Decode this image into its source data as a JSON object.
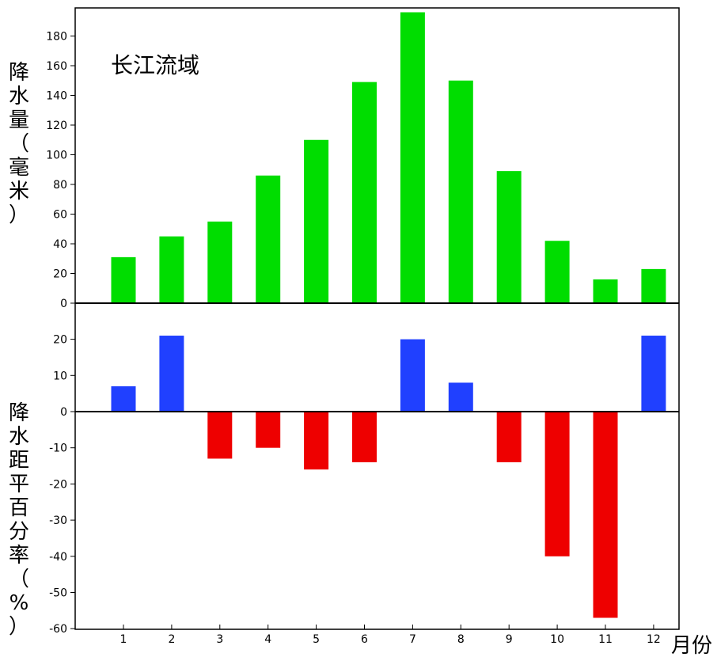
{
  "chart_data": [
    {
      "type": "bar",
      "title": "长江流域",
      "ylabel": "降水量（毫米）",
      "xlabel": "月份",
      "categories": [
        "1",
        "2",
        "3",
        "4",
        "5",
        "6",
        "7",
        "8",
        "9",
        "10",
        "11",
        "12"
      ],
      "values": [
        31,
        45,
        55,
        86,
        110,
        149,
        196,
        150,
        89,
        42,
        16,
        23
      ],
      "ylim": [
        0,
        198
      ],
      "yticks": [
        0,
        20,
        40,
        60,
        80,
        100,
        120,
        140,
        160,
        180
      ],
      "color": "#00dd00"
    },
    {
      "type": "bar",
      "ylabel": "降水距平百分率（%）",
      "xlabel": "月份",
      "categories": [
        "1",
        "2",
        "3",
        "4",
        "5",
        "6",
        "7",
        "8",
        "9",
        "10",
        "11",
        "12"
      ],
      "values": [
        7,
        21,
        -13,
        -10,
        -16,
        -14,
        20,
        8,
        -14,
        -40,
        -57,
        21
      ],
      "ylim": [
        -60,
        25
      ],
      "yticks": [
        -60,
        -50,
        -40,
        -30,
        -20,
        -10,
        0,
        10,
        20
      ],
      "positive_color": "#2040ff",
      "negative_color": "#ee0000"
    }
  ]
}
